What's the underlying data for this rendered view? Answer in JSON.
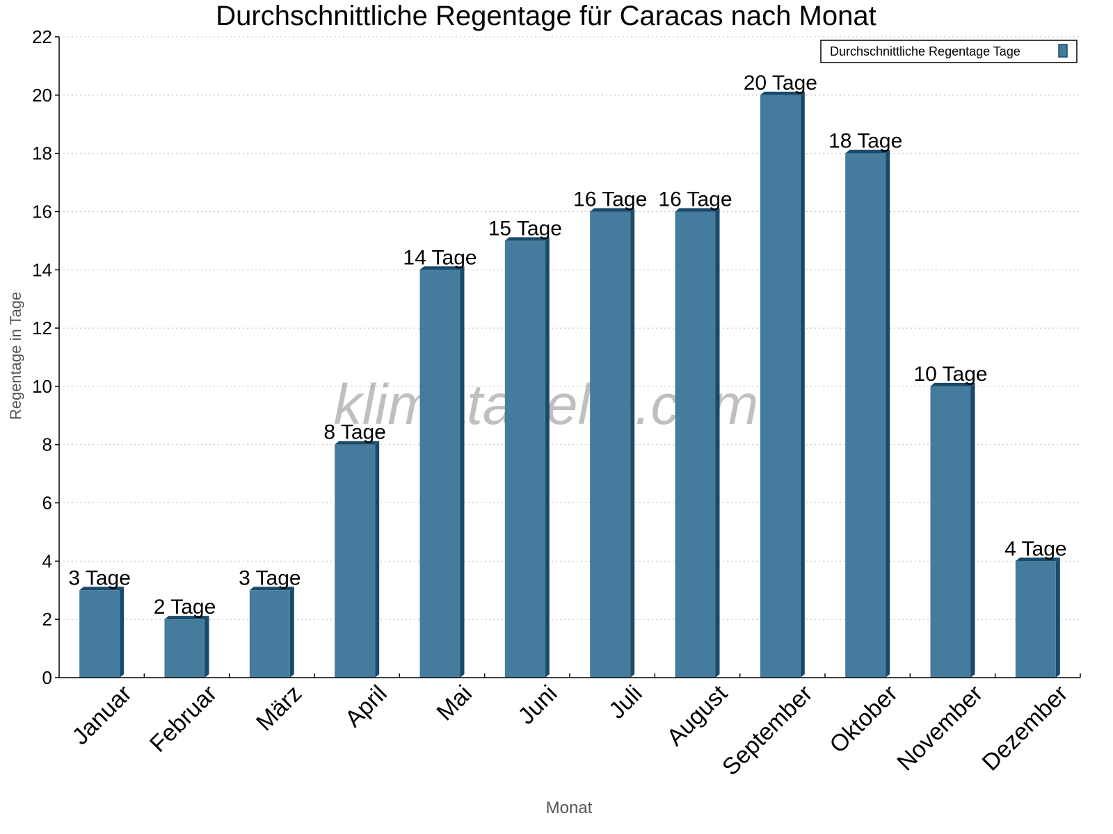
{
  "chart_data": {
    "type": "bar",
    "title": "Durchschnittliche Regentage für Caracas nach Monat",
    "xlabel": "Monat",
    "ylabel": "Regentage in Tage",
    "ylim": [
      0,
      22
    ],
    "yticks": [
      0,
      2,
      4,
      6,
      8,
      10,
      12,
      14,
      16,
      18,
      20,
      22
    ],
    "grid": true,
    "legend_position": "top-right",
    "categories": [
      "Januar",
      "Februar",
      "März",
      "April",
      "Mai",
      "Juni",
      "Juli",
      "August",
      "September",
      "Oktober",
      "November",
      "Dezember"
    ],
    "series": [
      {
        "name": "Durchschnittliche Regentage Tage",
        "values": [
          3,
          2,
          3,
          8,
          14,
          15,
          16,
          16,
          20,
          18,
          10,
          4
        ],
        "labels": [
          "3 Tage",
          "2 Tage",
          "3 Tage",
          "8 Tage",
          "14 Tage",
          "15 Tage",
          "16 Tage",
          "16 Tage",
          "20 Tage",
          "18 Tage",
          "10 Tage",
          "4 Tage"
        ],
        "color": "#457b9d",
        "shade_color": "#1a4a6b"
      }
    ],
    "watermark": "klimatabelle.com"
  }
}
